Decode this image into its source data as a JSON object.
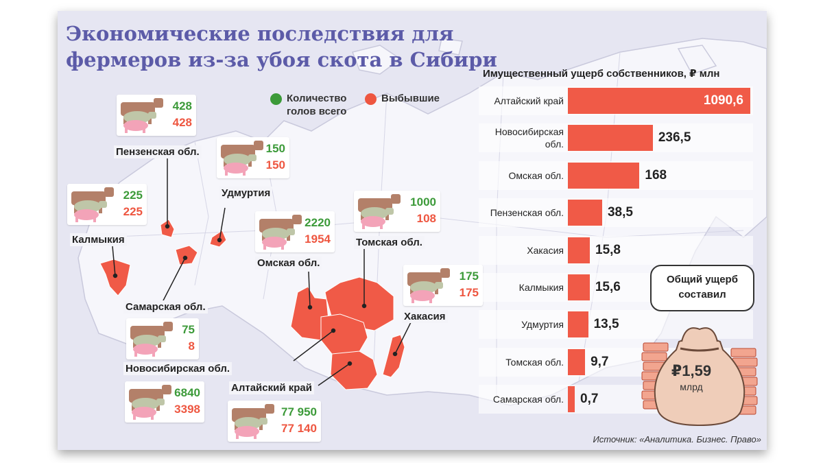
{
  "title": "Экономические последствия для фермеров из-за убоя скота в Сибири",
  "legend": {
    "total": "Количество голов всего",
    "dead": "Выбывшие"
  },
  "colors": {
    "total": "#3c9a39",
    "dead": "#ee5640",
    "bar": "#f05a47",
    "title": "#5c5ba8",
    "map": "#f6f6fb",
    "region": "#f05a47"
  },
  "regions": [
    {
      "name": "Пензенская обл.",
      "total": "428",
      "dead": "428"
    },
    {
      "name": "Удмуртия",
      "total": "150",
      "dead": "150"
    },
    {
      "name": "Калмыкия",
      "total": "225",
      "dead": "225"
    },
    {
      "name": "Омская обл.",
      "total": "2220",
      "dead": "1954"
    },
    {
      "name": "Томская обл.",
      "total": "1000",
      "dead": "108"
    },
    {
      "name": "Самарская обл.",
      "total": "75",
      "dead": "8"
    },
    {
      "name": "Хакасия",
      "total": "175",
      "dead": "175"
    },
    {
      "name": "Новосибирская обл.",
      "total": "6840",
      "dead": "3398"
    },
    {
      "name": "Алтайский край",
      "total": "77 950",
      "dead": "77 140"
    }
  ],
  "chart_data": {
    "type": "bar",
    "title": "Имущественный ущерб собственников, ₽ млн",
    "categories": [
      "Алтайский край",
      "Новосибирская обл.",
      "Омская обл.",
      "Пензенская обл.",
      "Хакасия",
      "Калмыкия",
      "Удмуртия",
      "Томская обл.",
      "Самарская обл."
    ],
    "value_labels": [
      "1090,6",
      "236,5",
      "168",
      "38,5",
      "15,8",
      "15,6",
      "13,5",
      "9,7",
      "0,7"
    ],
    "values": [
      1090.6,
      236.5,
      168,
      38.5,
      15.8,
      15.6,
      13.5,
      9.7,
      0.7
    ]
  },
  "total_damage": {
    "caption": "Общий ущерб составил",
    "amount": "₽1,59",
    "unit": "млрд"
  },
  "source": "Источник: «Аналитика. Бизнес. Право»"
}
